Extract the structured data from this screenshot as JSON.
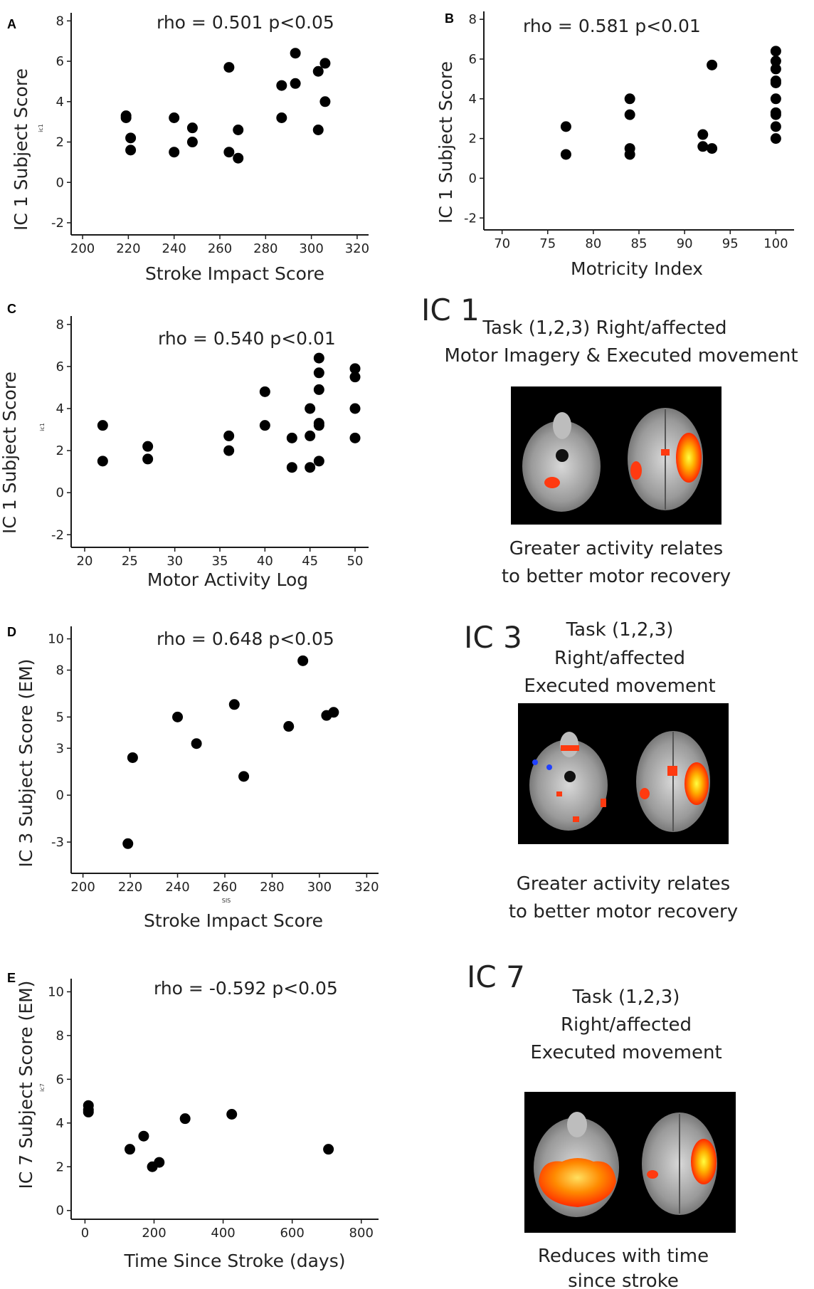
{
  "chart_data": [
    {
      "id": "A",
      "type": "scatter",
      "panel_label": "A",
      "annotation": "rho = 0.501 p<0.05",
      "xlabel": "Stroke Impact Score",
      "ylabel": "IC 1  Subject Score",
      "ylabel_small": "ic1",
      "xlim": [
        195,
        325
      ],
      "ylim": [
        -2.6,
        8.4
      ],
      "xticks": [
        200,
        220,
        240,
        260,
        280,
        300,
        320
      ],
      "yticks": [
        -2,
        0,
        2,
        4,
        6,
        8
      ],
      "x": [
        219,
        219,
        221,
        221,
        240,
        240,
        248,
        248,
        264,
        264,
        268,
        268,
        287,
        287,
        293,
        293,
        303,
        303,
        306,
        306
      ],
      "y": [
        3.3,
        3.2,
        2.2,
        1.6,
        3.2,
        1.5,
        2.7,
        2.0,
        5.7,
        1.5,
        2.6,
        1.2,
        4.8,
        3.2,
        6.4,
        4.9,
        5.5,
        2.6,
        5.9,
        4.0
      ]
    },
    {
      "id": "B",
      "type": "scatter",
      "panel_label": "B",
      "annotation": "rho = 0.581 p<0.01",
      "xlabel": "Motricity Index",
      "ylabel": "IC 1  Subject Score",
      "ylabel_small": "",
      "xlim": [
        68,
        102
      ],
      "ylim": [
        -2.6,
        8.4
      ],
      "xticks": [
        70,
        75,
        80,
        85,
        90,
        95,
        100
      ],
      "yticks": [
        -2,
        0,
        2,
        4,
        6,
        8
      ],
      "x": [
        77,
        77,
        84,
        84,
        84,
        84,
        92,
        92,
        93,
        93,
        100,
        100,
        100,
        100,
        100,
        100,
        100,
        100,
        100,
        100
      ],
      "y": [
        2.6,
        1.2,
        4.0,
        3.2,
        1.5,
        1.2,
        2.2,
        1.6,
        5.7,
        1.5,
        6.4,
        5.9,
        5.5,
        4.9,
        4.8,
        4.0,
        3.3,
        3.2,
        2.6,
        2.0
      ]
    },
    {
      "id": "C",
      "type": "scatter",
      "panel_label": "C",
      "annotation": "rho = 0.540 p<0.01",
      "xlabel": "Motor Activity Log",
      "ylabel": "IC 1  Subject Score",
      "ylabel_small": "ic1",
      "xlim": [
        18.5,
        51.5
      ],
      "ylim": [
        -2.6,
        8.4
      ],
      "xticks": [
        20,
        25,
        30,
        35,
        40,
        45,
        50
      ],
      "yticks": [
        -2,
        0,
        2,
        4,
        6,
        8
      ],
      "x": [
        22,
        22,
        27,
        27,
        36,
        36,
        40,
        40,
        43,
        43,
        45,
        45,
        45,
        46,
        46,
        46,
        46,
        46,
        46,
        50,
        50,
        50,
        50
      ],
      "y": [
        3.2,
        1.5,
        2.2,
        1.6,
        2.7,
        2.0,
        4.8,
        3.2,
        2.6,
        1.2,
        4.0,
        2.7,
        1.2,
        6.4,
        5.7,
        4.9,
        3.3,
        3.2,
        1.5,
        5.9,
        5.5,
        4.0,
        2.6
      ]
    },
    {
      "id": "D",
      "type": "scatter",
      "panel_label": "D",
      "annotation": "rho = 0.648 p<0.05",
      "xlabel": "Stroke Impact Score",
      "xlabel_small": "SIS",
      "ylabel": "IC 3  Subject Score (EM)",
      "ylabel_small": "",
      "xlim": [
        195,
        325
      ],
      "ylim": [
        -5,
        10.8
      ],
      "xticks": [
        200,
        220,
        240,
        260,
        280,
        300,
        320
      ],
      "yticks": [
        -3,
        0,
        3,
        5,
        8,
        10
      ],
      "ytick_labels": [
        "-3",
        "0",
        "3",
        "5",
        "8",
        "10"
      ],
      "x": [
        219,
        221,
        240,
        248,
        264,
        268,
        287,
        293,
        303,
        306
      ],
      "y": [
        -3.1,
        2.4,
        5.0,
        3.3,
        5.8,
        1.2,
        4.4,
        8.6,
        5.1,
        5.3
      ]
    },
    {
      "id": "E",
      "type": "scatter",
      "panel_label": "E",
      "annotation": "rho = -0.592 p<0.05",
      "xlabel": "Time Since Stroke (days)",
      "ylabel": "IC 7  Subject Score (EM)",
      "ylabel_small": "ic7",
      "xlim": [
        -40,
        850
      ],
      "ylim": [
        -0.4,
        10.6
      ],
      "xticks": [
        0,
        200,
        400,
        600,
        800
      ],
      "yticks": [
        0,
        2,
        4,
        6,
        8,
        10
      ],
      "x": [
        10,
        10,
        10,
        130,
        170,
        195,
        215,
        290,
        425,
        705
      ],
      "y": [
        4.8,
        4.6,
        4.5,
        2.8,
        3.4,
        2.0,
        2.2,
        4.2,
        4.4,
        2.8
      ]
    }
  ],
  "ic_panels": [
    {
      "id": "ic1",
      "heading": "IC 1",
      "task_lines": [
        "Task (1,2,3)  Right/affected",
        "Motor Imagery & Executed movement"
      ],
      "caption_lines": [
        "Greater activity relates",
        "to better motor recovery"
      ]
    },
    {
      "id": "ic3",
      "heading": "IC 3",
      "task_lines": [
        "Task (1,2,3)",
        "Right/affected",
        "Executed movement"
      ],
      "caption_lines": [
        "Greater activity relates",
        "to better motor recovery"
      ]
    },
    {
      "id": "ic7",
      "heading": "IC 7",
      "task_lines": [
        "Task (1,2,3)",
        "Right/affected",
        "Executed movement"
      ],
      "caption_lines": [
        "Reduces with time",
        "since stroke"
      ]
    }
  ],
  "colors": {
    "point": "#000000",
    "axis": "#1a1a1a",
    "brain_bg": "#000000",
    "activation_hot": "#ff2a00",
    "activation_warm": "#ffd400",
    "deactivation": "#2040ff"
  }
}
